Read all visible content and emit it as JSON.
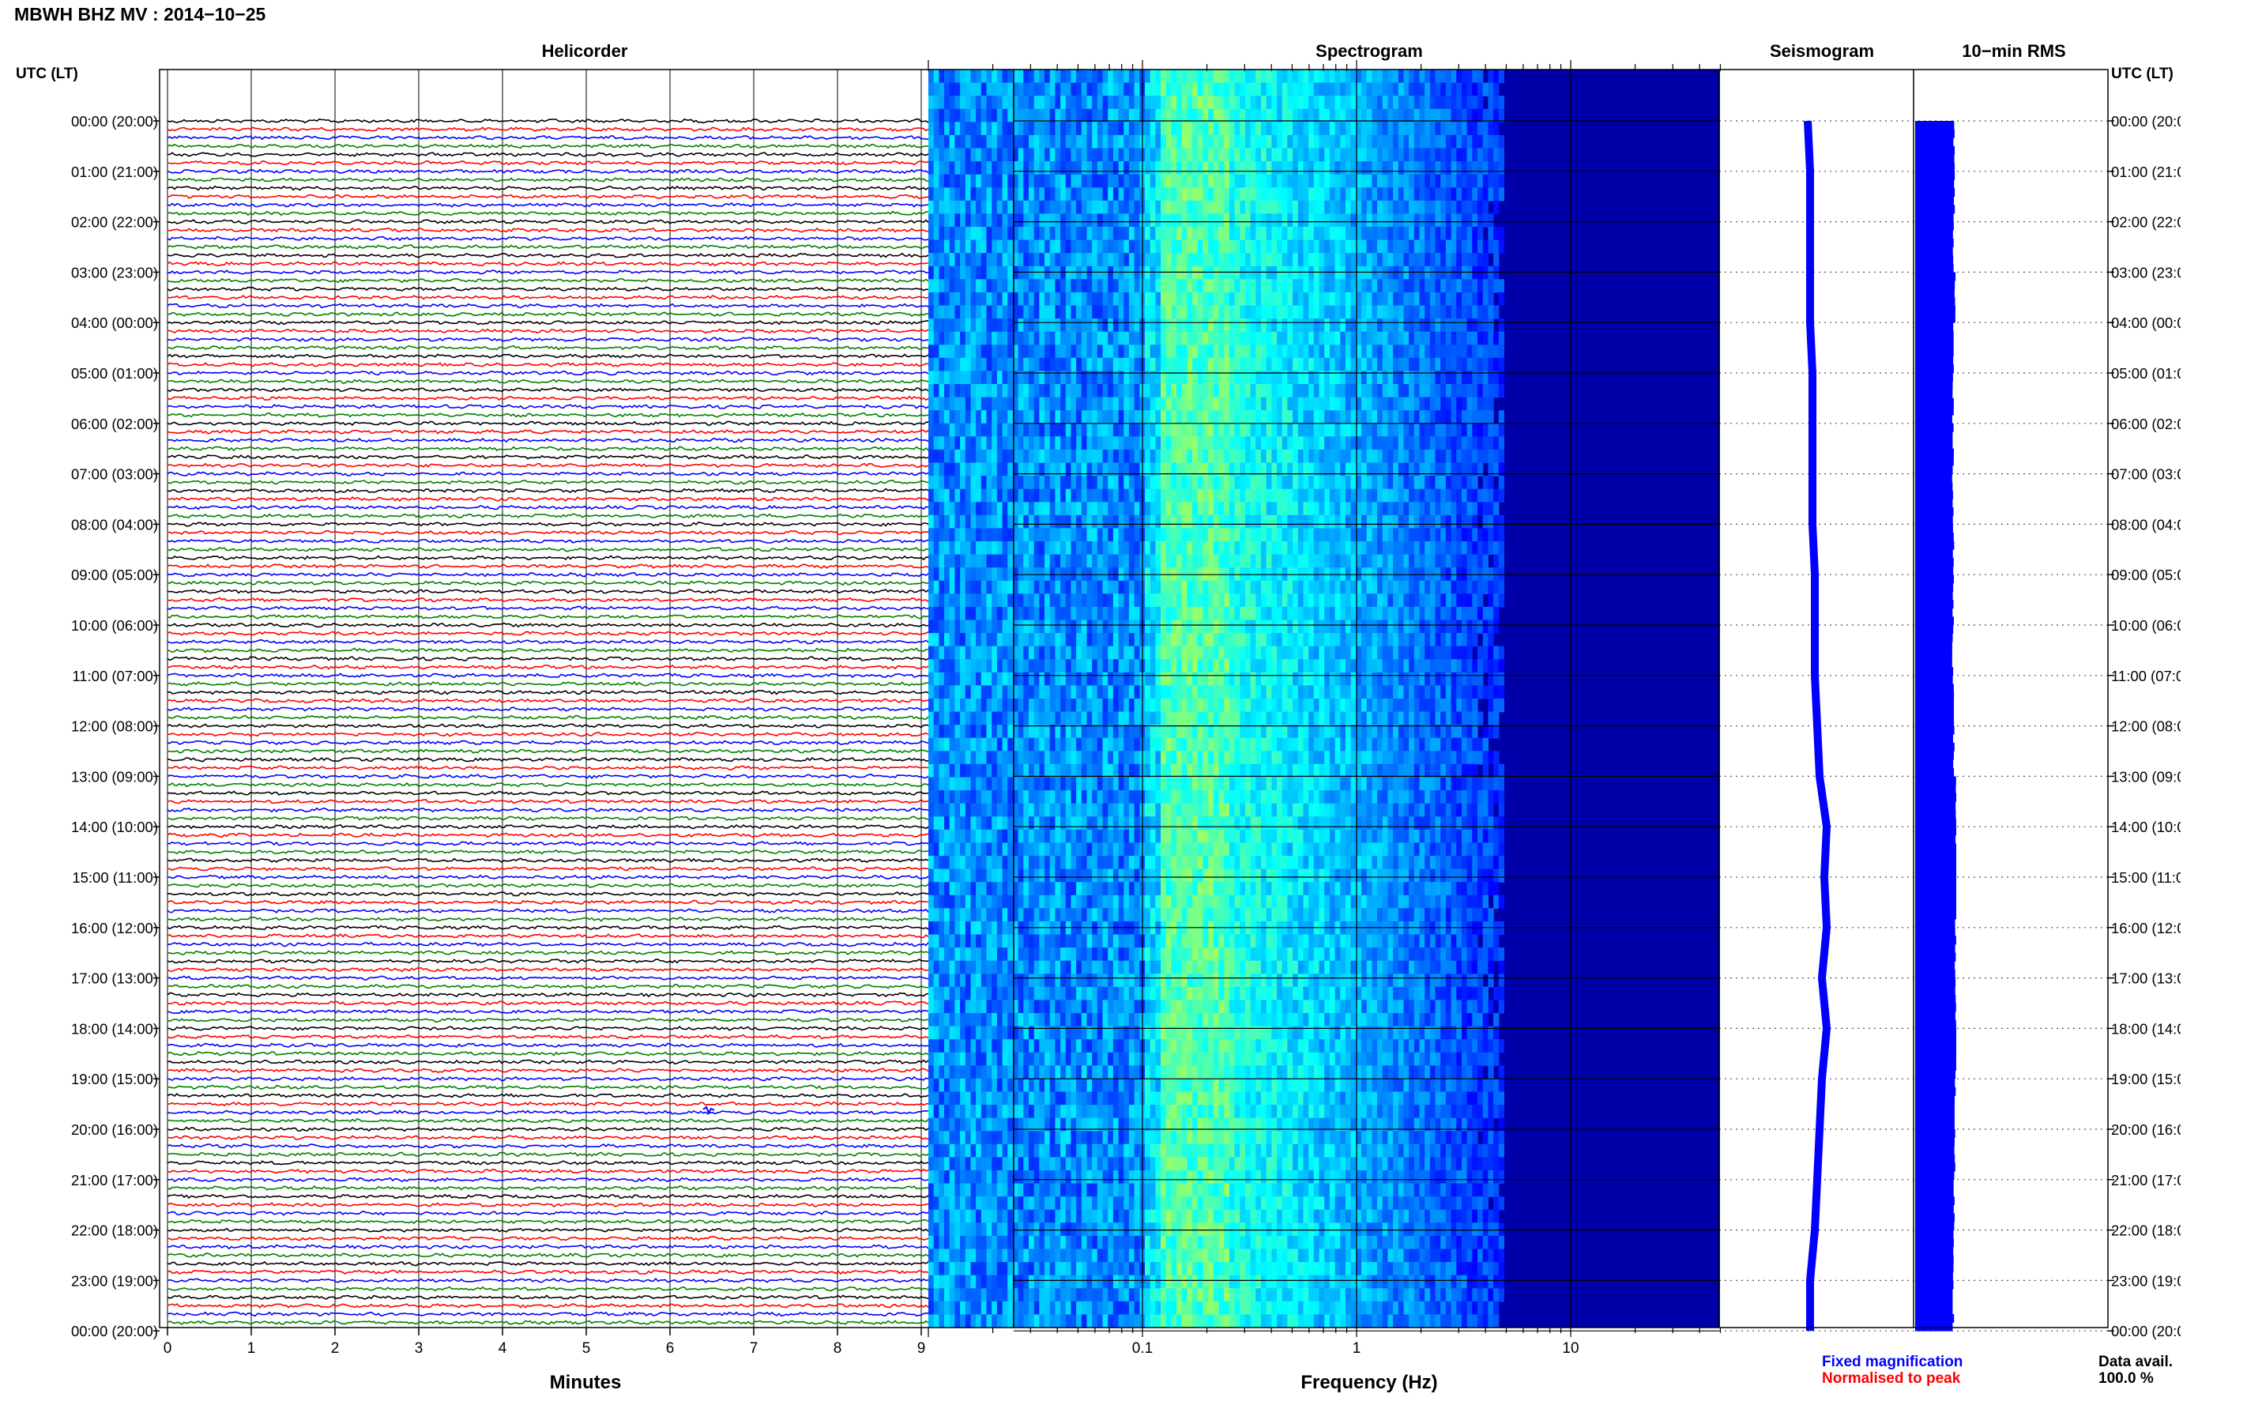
{
  "header": {
    "station_title": "MBWH BHZ MV : 2014−10−25"
  },
  "panels": {
    "helicorder": "Helicorder",
    "spectrogram": "Spectrogram",
    "seismogram": "Seismogram",
    "rms": "10−min RMS"
  },
  "axes": {
    "left_time_label": "UTC (LT)",
    "right_time_label": "UTC (LT)",
    "helicorder_xlabel": "Minutes",
    "spectrogram_xlabel": "Frequency (Hz)"
  },
  "legend": {
    "fixed": "Fixed magnification",
    "normalised": "Normalised to peak",
    "fixed_color": "#0000ff",
    "normalised_color": "#ff0000"
  },
  "availability": {
    "label": "Data avail.",
    "value": "100.0 %"
  },
  "chart_data": [
    {
      "type": "line",
      "name": "helicorder",
      "title": "Helicorder",
      "xlabel": "Minutes",
      "ylabel": "UTC (LT)",
      "x_ticks": [
        "0",
        "1",
        "2",
        "3",
        "4",
        "5",
        "6",
        "7",
        "8",
        "9"
      ],
      "xlim": [
        0,
        10
      ],
      "rows_per_hour": 6,
      "row_minutes": 10,
      "trace_colors": [
        "#000000",
        "#ff0000",
        "#0000ff",
        "#008000"
      ],
      "y_tick_labels": [
        "00:00 (20:00)",
        "01:00 (21:00)",
        "02:00 (22:00)",
        "03:00 (23:00)",
        "04:00 (00:00)",
        "05:00 (01:00)",
        "06:00 (02:00)",
        "07:00 (03:00)",
        "08:00 (04:00)",
        "09:00 (05:00)",
        "10:00 (06:00)",
        "11:00 (07:00)",
        "12:00 (08:00)",
        "13:00 (09:00)",
        "14:00 (10:00)",
        "15:00 (11:00)",
        "16:00 (12:00)",
        "17:00 (13:00)",
        "18:00 (14:00)",
        "19:00 (15:00)",
        "20:00 (16:00)",
        "21:00 (17:00)",
        "22:00 (18:00)",
        "23:00 (19:00)",
        "00:00 (20:00)"
      ]
    },
    {
      "type": "heatmap",
      "name": "spectrogram",
      "title": "Spectrogram",
      "xlabel": "Frequency (Hz)",
      "x_scale": "log",
      "xlim": [
        0.01,
        50
      ],
      "x_ticks": [
        "0.1",
        "1",
        "10"
      ],
      "colormap": [
        "#00008f",
        "#0000ff",
        "#0080ff",
        "#00ffff",
        "#80ff80",
        "#ffff00"
      ],
      "peak_band_hz": [
        0.12,
        0.25
      ],
      "energy_rolloff_hz": 5
    },
    {
      "type": "line",
      "name": "seismogram",
      "title": "Seismogram",
      "color": "#0000ff",
      "hours": [
        0,
        1,
        2,
        3,
        4,
        5,
        6,
        7,
        8,
        9,
        10,
        11,
        12,
        13,
        14,
        15,
        16,
        17,
        18,
        19,
        20,
        21,
        22,
        23,
        24
      ],
      "offset": [
        0,
        0.1,
        0.1,
        0.1,
        0.1,
        0.2,
        0.2,
        0.2,
        0.2,
        0.3,
        0.3,
        0.3,
        0.4,
        0.5,
        0.8,
        0.7,
        0.8,
        0.6,
        0.8,
        0.6,
        0.5,
        0.4,
        0.3,
        0.1,
        0.1
      ]
    },
    {
      "type": "bar",
      "name": "rms",
      "title": "10−min RMS",
      "color": "#0000ff",
      "hours": [
        0,
        1,
        2,
        3,
        4,
        5,
        6,
        7,
        8,
        9,
        10,
        11,
        12,
        13,
        14,
        15,
        16,
        17,
        18,
        19,
        20,
        21,
        22,
        23
      ],
      "relative_rms": [
        0.95,
        0.95,
        0.93,
        0.97,
        0.93,
        0.92,
        0.93,
        0.92,
        0.93,
        0.93,
        0.92,
        0.93,
        0.94,
        1.0,
        1.0,
        0.99,
        0.98,
        0.98,
        1.0,
        0.97,
        0.96,
        0.95,
        0.94,
        0.93
      ]
    }
  ]
}
